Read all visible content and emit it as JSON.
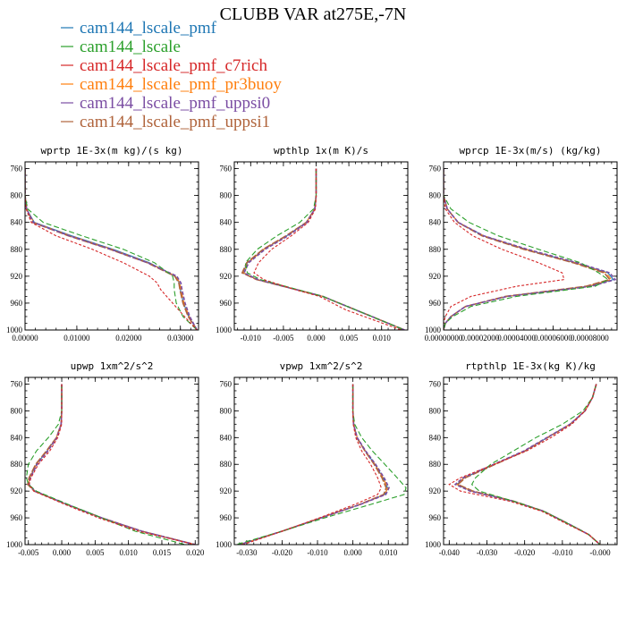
{
  "title": "CLUBB VAR at275E,-7N",
  "legend": [
    {
      "label": "cam144_lscale_pmf",
      "color": "#1f77b4"
    },
    {
      "label": "cam144_lscale",
      "color": "#2ca02c"
    },
    {
      "label": "cam144_lscale_pmf_c7rich",
      "color": "#d62728"
    },
    {
      "label": "cam144_lscale_pmf_pr3buoy",
      "color": "#ff7f0e"
    },
    {
      "label": "cam144_lscale_pmf_uppsi0",
      "color": "#7b4ea3"
    },
    {
      "label": "cam144_lscale_pmf_uppsi1",
      "color": "#b0643c"
    }
  ],
  "chart_data": [
    {
      "type": "line",
      "title": "wprtp  1E-3x(m kg)/(s kg)",
      "xlim": [
        0,
        0.0335
      ],
      "ylim": [
        1000,
        750
      ],
      "xticks": [
        0,
        0.01,
        0.02,
        0.03
      ],
      "xtick_labels": [
        "0.00000",
        "0.01000",
        "0.02000",
        "0.03000"
      ],
      "yticks": [
        760,
        800,
        840,
        880,
        920,
        960,
        1000
      ],
      "ytick_labels": [
        "760",
        "800",
        "840",
        "880",
        "920",
        "960",
        "1000"
      ],
      "y": [
        760,
        800,
        820,
        840,
        860,
        880,
        900,
        920,
        930,
        940,
        960,
        980,
        1000
      ],
      "series": [
        {
          "values": [
            0,
            0,
            0.0003,
            0.0018,
            0.009,
            0.017,
            0.024,
            0.029,
            0.0298,
            0.03,
            0.0306,
            0.0316,
            0.0332
          ]
        },
        {
          "values": [
            0,
            0,
            0.0005,
            0.0035,
            0.011,
            0.019,
            0.025,
            0.0285,
            0.0288,
            0.0288,
            0.0292,
            0.0305,
            0.0332
          ]
        },
        {
          "values": [
            0,
            0,
            0.0002,
            0.0012,
            0.006,
            0.013,
            0.019,
            0.024,
            0.0255,
            0.0262,
            0.0285,
            0.0308,
            0.0332
          ]
        },
        {
          "values": [
            0,
            0,
            0.0003,
            0.0017,
            0.0088,
            0.0168,
            0.0238,
            0.0291,
            0.0299,
            0.0301,
            0.0307,
            0.0317,
            0.0332
          ]
        },
        {
          "values": [
            0,
            0,
            0.0003,
            0.0016,
            0.0086,
            0.0166,
            0.0237,
            0.0293,
            0.0301,
            0.0303,
            0.0309,
            0.0318,
            0.0332
          ]
        },
        {
          "values": [
            0,
            0,
            0.0003,
            0.0015,
            0.0084,
            0.0164,
            0.0236,
            0.0289,
            0.0297,
            0.0299,
            0.0305,
            0.0315,
            0.0332
          ]
        }
      ]
    },
    {
      "type": "line",
      "title": "wpthlp  1x(m K)/s",
      "xlim": [
        -0.0125,
        0.014
      ],
      "ylim": [
        1000,
        750
      ],
      "xticks": [
        -0.01,
        -0.005,
        0,
        0.005,
        0.01
      ],
      "xtick_labels": [
        "-0.010",
        "-0.005",
        "0.000",
        "0.005",
        "0.010"
      ],
      "yticks": [
        760,
        800,
        840,
        880,
        920,
        960,
        1000
      ],
      "ytick_labels": [
        "760",
        "800",
        "840",
        "880",
        "920",
        "960",
        "1000"
      ],
      "y": [
        760,
        800,
        820,
        840,
        860,
        880,
        900,
        915,
        925,
        940,
        950,
        970,
        1000
      ],
      "series": [
        {
          "values": [
            0,
            0,
            -0.0002,
            -0.0015,
            -0.0045,
            -0.008,
            -0.0105,
            -0.0112,
            -0.009,
            -0.003,
            0.001,
            0.006,
            0.0135
          ]
        },
        {
          "values": [
            0,
            0,
            -0.0004,
            -0.0025,
            -0.006,
            -0.009,
            -0.0108,
            -0.0105,
            -0.0085,
            -0.0028,
            0.001,
            0.006,
            0.0135
          ]
        },
        {
          "values": [
            0,
            0,
            -0.0001,
            -0.0012,
            -0.0038,
            -0.0068,
            -0.0088,
            -0.0095,
            -0.008,
            -0.0032,
            0.0005,
            0.0045,
            0.013
          ]
        },
        {
          "values": [
            0,
            0,
            -0.0002,
            -0.0015,
            -0.0045,
            -0.008,
            -0.0104,
            -0.0111,
            -0.009,
            -0.003,
            0.001,
            0.006,
            0.0135
          ]
        },
        {
          "values": [
            0,
            0,
            -0.0002,
            -0.0014,
            -0.0043,
            -0.0078,
            -0.0103,
            -0.011,
            -0.0089,
            -0.003,
            0.001,
            0.006,
            0.0135
          ]
        },
        {
          "values": [
            0,
            0,
            -0.0002,
            -0.0015,
            -0.0046,
            -0.0081,
            -0.0106,
            -0.0113,
            -0.0091,
            -0.003,
            0.001,
            0.006,
            0.0135
          ]
        }
      ]
    },
    {
      "type": "line",
      "title": "wprcp  1E-3x(m/s) (kg/kg)",
      "xlim": [
        0,
        9.5e-05
      ],
      "ylim": [
        1000,
        750
      ],
      "xticks": [
        0,
        2e-05,
        4e-05,
        6e-05,
        8e-05
      ],
      "xtick_labels": [
        "0.00000000",
        "0.00002000",
        "0.00004000",
        "0.00006000",
        "0.00008000"
      ],
      "yticks": [
        760,
        800,
        840,
        880,
        920,
        960,
        1000
      ],
      "ytick_labels": [
        "760",
        "800",
        "840",
        "880",
        "920",
        "960",
        "1000"
      ],
      "y": [
        760,
        800,
        820,
        840,
        860,
        880,
        900,
        915,
        925,
        935,
        950,
        965,
        980,
        990,
        1000
      ],
      "series": [
        {
          "values": [
            0,
            0,
            2e-06,
            8e-06,
            2.2e-05,
            4.5e-05,
            7.2e-05,
            9e-05,
            9.3e-05,
            8e-05,
            3.5e-05,
            1.2e-05,
            4e-06,
            1e-06,
            0
          ]
        },
        {
          "values": [
            0,
            0,
            4e-06,
            1.4e-05,
            3e-05,
            5.2e-05,
            7.5e-05,
            8.5e-05,
            9e-05,
            8.3e-05,
            4e-05,
            1.5e-05,
            5e-06,
            1e-06,
            0
          ]
        },
        {
          "values": [
            0,
            0,
            1e-06,
            6e-06,
            1.6e-05,
            3.2e-05,
            5.2e-05,
            6.5e-05,
            6.6e-05,
            4e-05,
            1.5e-05,
            4e-06,
            1e-06,
            0,
            0
          ]
        },
        {
          "values": [
            0,
            0,
            2e-06,
            8e-06,
            2.2e-05,
            4.5e-05,
            7.2e-05,
            8.9e-05,
            9.2e-05,
            7.9e-05,
            3.5e-05,
            1.2e-05,
            4e-06,
            1e-06,
            0
          ]
        },
        {
          "values": [
            0,
            0,
            2e-06,
            8e-06,
            2.2e-05,
            4.6e-05,
            7.3e-05,
            9.1e-05,
            9.4e-05,
            8.1e-05,
            3.5e-05,
            1.2e-05,
            4e-06,
            1e-06,
            0
          ]
        },
        {
          "values": [
            0,
            0,
            2e-06,
            8e-06,
            2.1e-05,
            4.4e-05,
            7.1e-05,
            8.8e-05,
            9.1e-05,
            7.8e-05,
            3.4e-05,
            1.2e-05,
            4e-06,
            1e-06,
            0
          ]
        }
      ]
    },
    {
      "type": "line",
      "title": "upwp  1xm^2/s^2",
      "xlim": [
        -0.0055,
        0.0205
      ],
      "ylim": [
        1000,
        750
      ],
      "xticks": [
        -0.005,
        0,
        0.005,
        0.01,
        0.015,
        0.02
      ],
      "xtick_labels": [
        "-0.005",
        "0.000",
        "0.005",
        "0.010",
        "0.015",
        "0.020"
      ],
      "yticks": [
        760,
        800,
        840,
        880,
        920,
        960,
        1000
      ],
      "ytick_labels": [
        "760",
        "800",
        "840",
        "880",
        "920",
        "960",
        "1000"
      ],
      "y": [
        760,
        800,
        820,
        840,
        860,
        880,
        900,
        910,
        920,
        940,
        960,
        980,
        1000
      ],
      "series": [
        {
          "values": [
            0,
            0,
            -0.0001,
            -0.0008,
            -0.0022,
            -0.0038,
            -0.0048,
            -0.005,
            -0.004,
            0.0008,
            0.006,
            0.012,
            0.02
          ]
        },
        {
          "values": [
            0,
            0,
            -0.0005,
            -0.002,
            -0.0038,
            -0.005,
            -0.0053,
            -0.005,
            -0.0038,
            0.001,
            0.006,
            0.011,
            0.0185
          ]
        },
        {
          "values": [
            0,
            0,
            0,
            -0.0006,
            -0.0018,
            -0.0035,
            -0.0046,
            -0.0049,
            -0.0042,
            0.0005,
            0.0055,
            0.0115,
            0.02
          ]
        },
        {
          "values": [
            0,
            0,
            -0.0001,
            -0.0008,
            -0.0022,
            -0.0038,
            -0.0048,
            -0.005,
            -0.004,
            0.0008,
            0.006,
            0.012,
            0.02
          ]
        },
        {
          "values": [
            0,
            0,
            -0.0001,
            -0.0007,
            -0.0021,
            -0.0037,
            -0.0047,
            -0.0049,
            -0.004,
            0.0008,
            0.006,
            0.012,
            0.02
          ]
        },
        {
          "values": [
            0,
            0,
            -0.0001,
            -0.0008,
            -0.0023,
            -0.0039,
            -0.0049,
            -0.0051,
            -0.0041,
            0.0008,
            0.006,
            0.012,
            0.02
          ]
        }
      ]
    },
    {
      "type": "line",
      "title": "vpwp  1xm^2/s^2",
      "xlim": [
        -0.0335,
        0.0155
      ],
      "ylim": [
        1000,
        750
      ],
      "xticks": [
        -0.03,
        -0.02,
        -0.01,
        0,
        0.01
      ],
      "xtick_labels": [
        "-0.030",
        "-0.020",
        "-0.010",
        "0.000",
        "0.010"
      ],
      "yticks": [
        760,
        800,
        840,
        880,
        920,
        960,
        1000
      ],
      "ytick_labels": [
        "760",
        "800",
        "840",
        "880",
        "920",
        "960",
        "1000"
      ],
      "y": [
        760,
        800,
        820,
        840,
        860,
        880,
        900,
        915,
        925,
        940,
        960,
        980,
        1000
      ],
      "series": [
        {
          "values": [
            0,
            0,
            0.0002,
            0.0012,
            0.0035,
            0.0062,
            0.0085,
            0.0098,
            0.009,
            0.002,
            -0.009,
            -0.02,
            -0.032
          ]
        },
        {
          "values": [
            0,
            0,
            0.0005,
            0.0025,
            0.0055,
            0.009,
            0.0125,
            0.015,
            0.0145,
            0.005,
            -0.008,
            -0.02,
            -0.033
          ]
        },
        {
          "values": [
            0,
            0,
            0.0001,
            0.0008,
            0.0025,
            0.005,
            0.007,
            0.008,
            0.007,
            0.0005,
            -0.0095,
            -0.02,
            -0.031
          ]
        },
        {
          "values": [
            0,
            0,
            0.0002,
            0.0012,
            0.0035,
            0.0062,
            0.0085,
            0.0098,
            0.009,
            0.002,
            -0.009,
            -0.02,
            -0.032
          ]
        },
        {
          "values": [
            0,
            0,
            0.0002,
            0.0012,
            0.0036,
            0.0064,
            0.0088,
            0.0102,
            0.0093,
            0.0021,
            -0.009,
            -0.02,
            -0.032
          ]
        },
        {
          "values": [
            0,
            0,
            0.0002,
            0.0011,
            0.0034,
            0.006,
            0.0082,
            0.0094,
            0.0087,
            0.0019,
            -0.009,
            -0.02,
            -0.032
          ]
        }
      ]
    },
    {
      "type": "line",
      "title": "rtpthlp  1E-3x(kg K)/kg",
      "xlim": [
        -0.0415,
        0.0045
      ],
      "ylim": [
        1000,
        750
      ],
      "xticks": [
        -0.04,
        -0.03,
        -0.02,
        -0.01,
        0
      ],
      "xtick_labels": [
        "-0.040",
        "-0.030",
        "-0.020",
        "-0.010",
        "-0.000"
      ],
      "yticks": [
        760,
        800,
        840,
        880,
        920,
        960,
        1000
      ],
      "ytick_labels": [
        "760",
        "800",
        "840",
        "880",
        "920",
        "960",
        "1000"
      ],
      "y": [
        760,
        780,
        800,
        820,
        840,
        860,
        880,
        900,
        910,
        920,
        935,
        950,
        970,
        985,
        1000
      ],
      "series": [
        {
          "values": [
            -0.001,
            -0.002,
            -0.004,
            -0.008,
            -0.014,
            -0.02,
            -0.028,
            -0.036,
            -0.038,
            -0.034,
            -0.023,
            -0.015,
            -0.008,
            -0.003,
            0.0
          ]
        },
        {
          "values": [
            -0.001,
            -0.002,
            -0.0045,
            -0.01,
            -0.017,
            -0.023,
            -0.029,
            -0.033,
            -0.034,
            -0.032,
            -0.023,
            -0.015,
            -0.008,
            -0.003,
            0.0
          ]
        },
        {
          "values": [
            -0.001,
            -0.002,
            -0.004,
            -0.0075,
            -0.013,
            -0.0195,
            -0.028,
            -0.037,
            -0.04,
            -0.037,
            -0.024,
            -0.0155,
            -0.0085,
            -0.003,
            0.0
          ]
        },
        {
          "values": [
            -0.001,
            -0.002,
            -0.004,
            -0.008,
            -0.014,
            -0.02,
            -0.028,
            -0.036,
            -0.038,
            -0.034,
            -0.023,
            -0.015,
            -0.008,
            -0.003,
            0.0
          ]
        },
        {
          "values": [
            -0.001,
            -0.002,
            -0.004,
            -0.008,
            -0.0141,
            -0.0202,
            -0.0282,
            -0.0363,
            -0.0384,
            -0.0344,
            -0.0231,
            -0.015,
            -0.008,
            -0.003,
            0.0
          ]
        },
        {
          "values": [
            -0.001,
            -0.002,
            -0.004,
            -0.0079,
            -0.0139,
            -0.0199,
            -0.0278,
            -0.0357,
            -0.0377,
            -0.0337,
            -0.0229,
            -0.015,
            -0.008,
            -0.003,
            0.0
          ]
        }
      ]
    }
  ]
}
